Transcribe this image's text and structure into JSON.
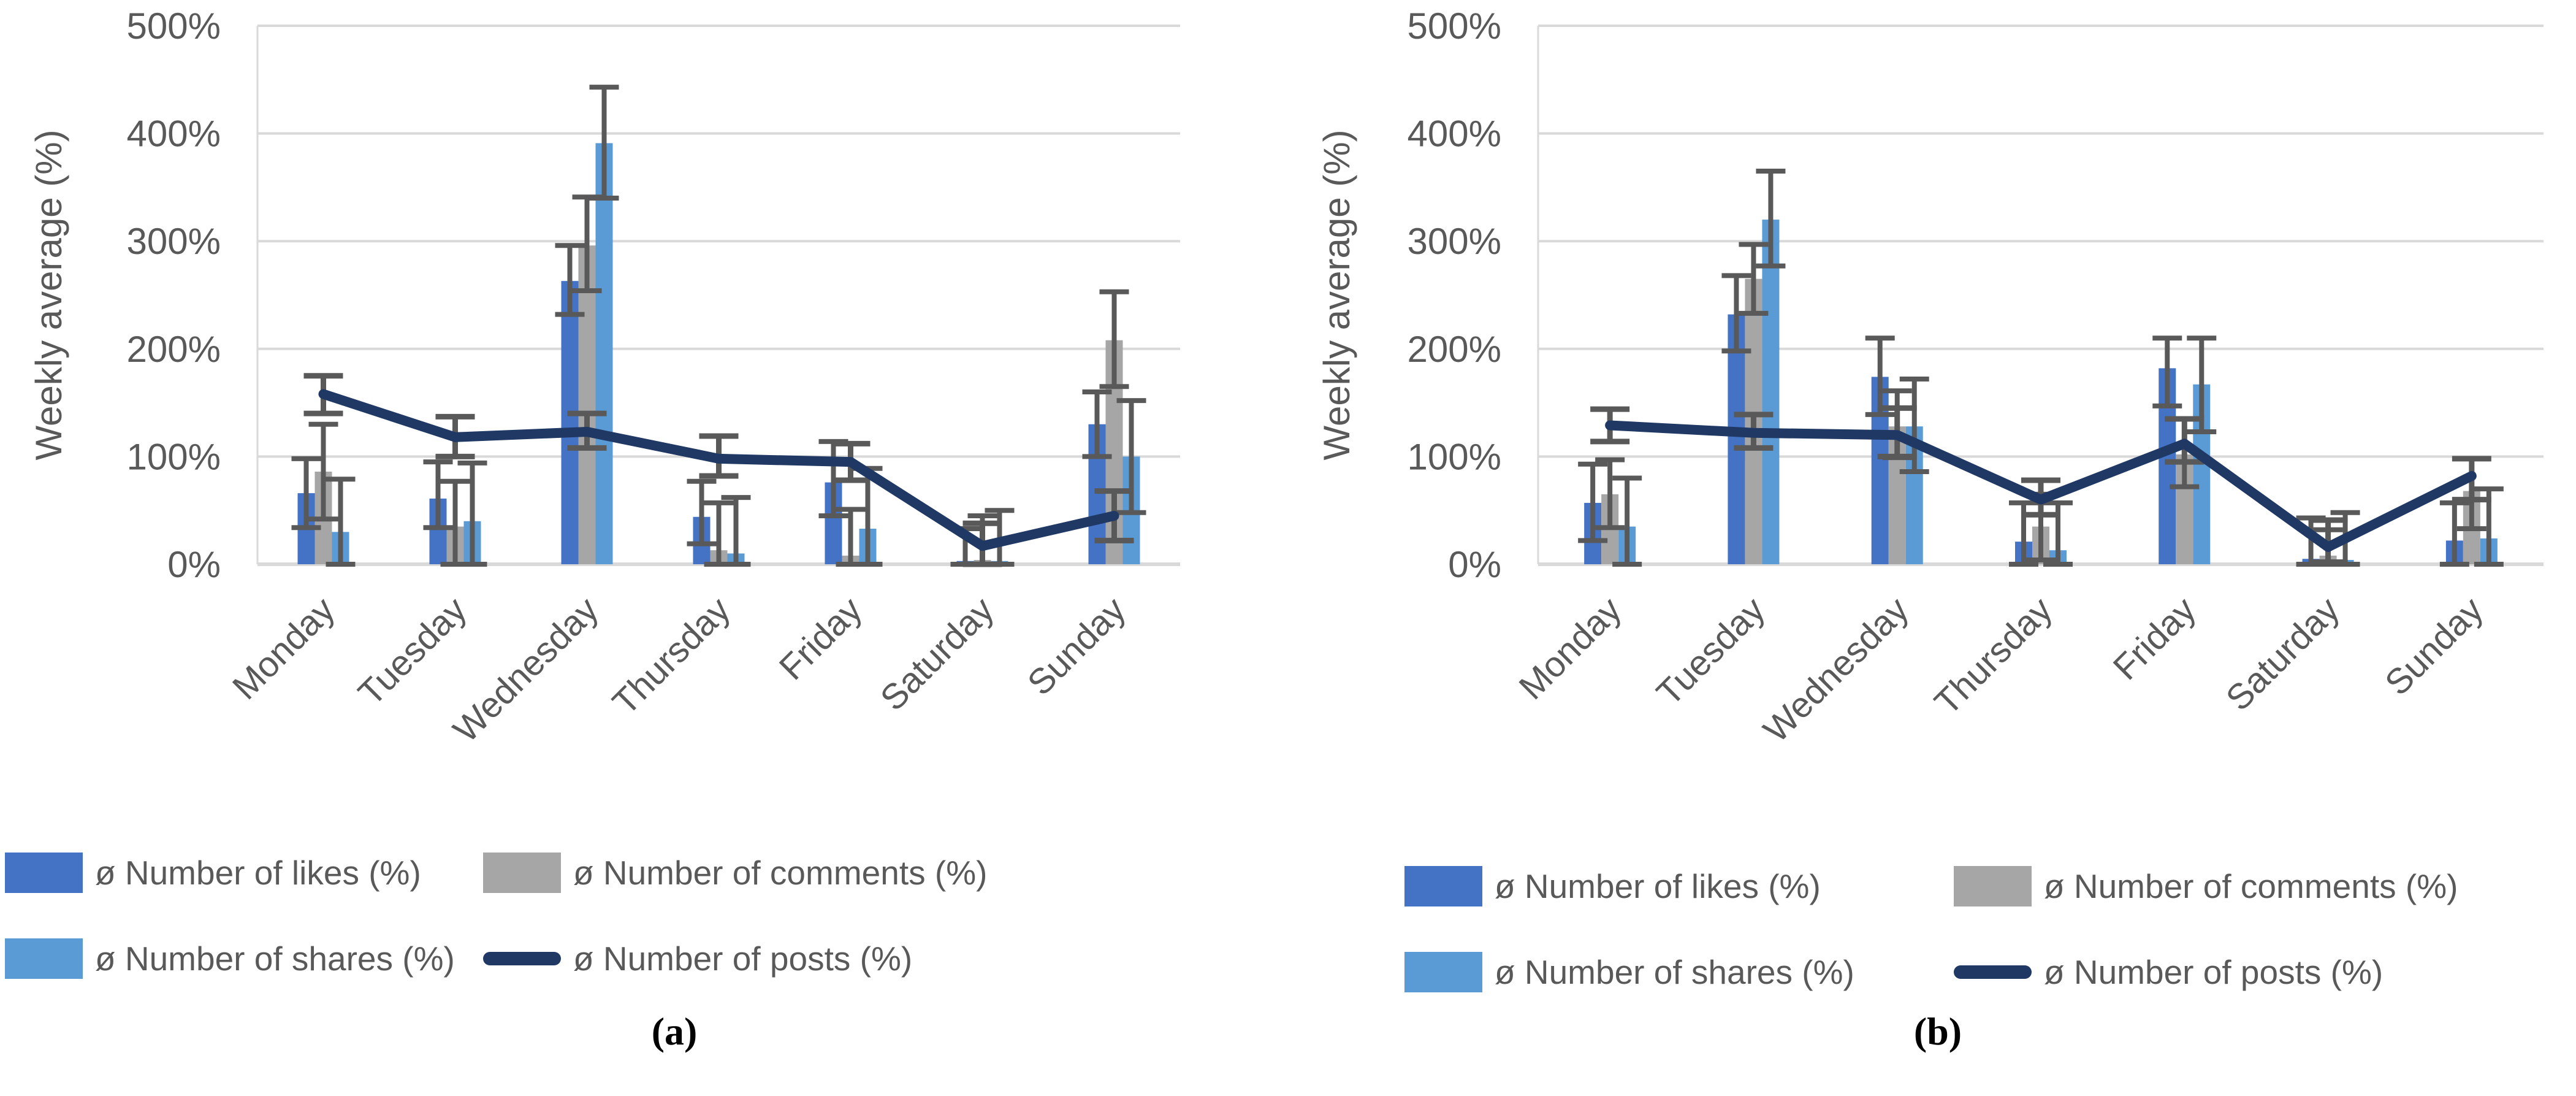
{
  "figure": {
    "background": "#ffffff",
    "text_color": "#595959",
    "gridline_color": "#d9d9d9",
    "error_bar_color": "#595959",
    "captions": {
      "a": "(a)",
      "b": "(b)"
    }
  },
  "chart_data": [
    {
      "type": "bar",
      "subtype": "grouped-bars-with-line-and-error-bars",
      "caption": "(a)",
      "title": "",
      "xlabel": "",
      "ylabel": "Weekly average (%)",
      "ylim": [
        0,
        500
      ],
      "y_tick_labels": [
        "0%",
        "100%",
        "200%",
        "300%",
        "400%",
        "500%"
      ],
      "grid": true,
      "legend_position": "bottom",
      "categories": [
        "Monday",
        "Tuesday",
        "Wednesday",
        "Thursday",
        "Friday",
        "Saturday",
        "Sunday"
      ],
      "series": [
        {
          "name": "ø Number of likes (%)",
          "type": "bar",
          "color": "#4472c4",
          "values": [
            66,
            61,
            263,
            44,
            76,
            3,
            130
          ],
          "err_low": [
            34,
            34,
            232,
            19,
            45,
            0,
            100
          ],
          "err_high": [
            98,
            95,
            296,
            77,
            114,
            33,
            160
          ]
        },
        {
          "name": "ø Number of comments (%)",
          "type": "bar",
          "color": "#a6a6a6",
          "values": [
            86,
            35,
            296,
            13,
            8,
            4,
            208
          ],
          "err_low": [
            42,
            0,
            254,
            0,
            0,
            0,
            165
          ],
          "err_high": [
            130,
            77,
            341,
            57,
            51,
            45,
            253
          ]
        },
        {
          "name": "ø Number of shares (%)",
          "type": "bar",
          "color": "#5b9bd5",
          "values": [
            30,
            40,
            391,
            10,
            33,
            3,
            100
          ],
          "err_low": [
            0,
            0,
            340,
            0,
            0,
            0,
            48
          ],
          "err_high": [
            79,
            94,
            443,
            62,
            89,
            50,
            152
          ]
        },
        {
          "name": "ø Number of posts (%)",
          "type": "line",
          "color": "#1f3864",
          "values": [
            158,
            118,
            123,
            98,
            95,
            17,
            45
          ],
          "err_low": [
            140,
            100,
            108,
            82,
            78,
            0,
            22
          ],
          "err_high": [
            175,
            137,
            140,
            119,
            112,
            38,
            68
          ]
        }
      ]
    },
    {
      "type": "bar",
      "subtype": "grouped-bars-with-line-and-error-bars",
      "caption": "(b)",
      "title": "",
      "xlabel": "",
      "ylabel": "Weekly average (%)",
      "ylim": [
        0,
        500
      ],
      "y_tick_labels": [
        "0%",
        "100%",
        "200%",
        "300%",
        "400%",
        "500%"
      ],
      "grid": true,
      "legend_position": "bottom",
      "categories": [
        "Monday",
        "Tuesday",
        "Wednesday",
        "Thursday",
        "Friday",
        "Saturday",
        "Sunday"
      ],
      "series": [
        {
          "name": "ø Number of likes (%)",
          "type": "bar",
          "color": "#4472c4",
          "values": [
            57,
            232,
            174,
            21,
            182,
            5,
            22
          ],
          "err_low": [
            22,
            198,
            139,
            0,
            147,
            0,
            0
          ],
          "err_high": [
            93,
            268,
            210,
            57,
            210,
            43,
            57
          ]
        },
        {
          "name": "ø Number of comments (%)",
          "type": "bar",
          "color": "#a6a6a6",
          "values": [
            65,
            265,
            128,
            35,
            102,
            8,
            68
          ],
          "err_low": [
            34,
            233,
            99,
            4,
            72,
            0,
            33
          ],
          "err_high": [
            97,
            297,
            161,
            65,
            135,
            32,
            98
          ]
        },
        {
          "name": "ø Number of shares (%)",
          "type": "bar",
          "color": "#5b9bd5",
          "values": [
            35,
            320,
            128,
            13,
            167,
            4,
            24
          ],
          "err_low": [
            0,
            277,
            86,
            0,
            123,
            0,
            0
          ],
          "err_high": [
            80,
            365,
            172,
            57,
            210,
            48,
            70
          ]
        },
        {
          "name": "ø Number of posts (%)",
          "type": "line",
          "color": "#1f3864",
          "values": [
            129,
            122,
            120,
            60,
            112,
            16,
            82
          ],
          "err_low": [
            114,
            108,
            100,
            46,
            95,
            2,
            60
          ],
          "err_high": [
            144,
            139,
            145,
            78,
            135,
            41,
            98
          ]
        }
      ]
    }
  ]
}
